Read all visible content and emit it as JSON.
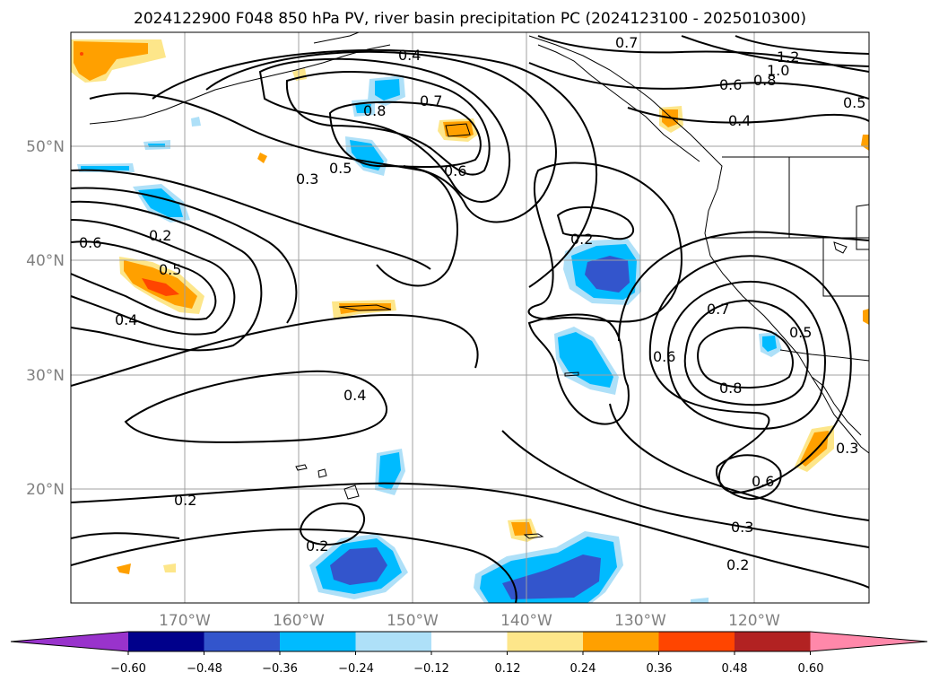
{
  "title": "2024122900 F048 850 hPa PV, river basin precipitation PC (2024123100 - 2025010300)",
  "lon_ticks": [
    "170°W",
    "160°W",
    "150°W",
    "140°W",
    "130°W",
    "120°W"
  ],
  "lat_ticks": [
    "50°N",
    "40°N",
    "30°N",
    "20°N"
  ],
  "contour_labels": [
    "0.4",
    "0.7",
    "1.2",
    "1.0",
    "0.8",
    "0.6",
    "0.4",
    "0.5",
    "0.8",
    "0.7",
    "0.5",
    "0.3",
    "0.6",
    "0.2",
    "0.6",
    "0.5",
    "0.4",
    "0.2",
    "0.4",
    "0.7",
    "0.6",
    "0.5",
    "0.8",
    "0.6",
    "0.3",
    "0.2",
    "0.3",
    "0.2",
    "0.2"
  ],
  "colorbar": {
    "ticks": [
      "−0.60",
      "−0.48",
      "−0.36",
      "−0.24",
      "−0.12",
      "0.12",
      "0.24",
      "0.36",
      "0.48",
      "0.60"
    ],
    "colors": [
      "#9933cc",
      "#00008b",
      "#3355cc",
      "#00bbff",
      "#aee0f8",
      "#ffffff",
      "#fde68a",
      "#ffa000",
      "#ff4500",
      "#b22222",
      "#ff88aa"
    ]
  },
  "colors": {
    "contour": "#000000",
    "grid": "#a0a0a0",
    "tick_label": "#808080"
  }
}
